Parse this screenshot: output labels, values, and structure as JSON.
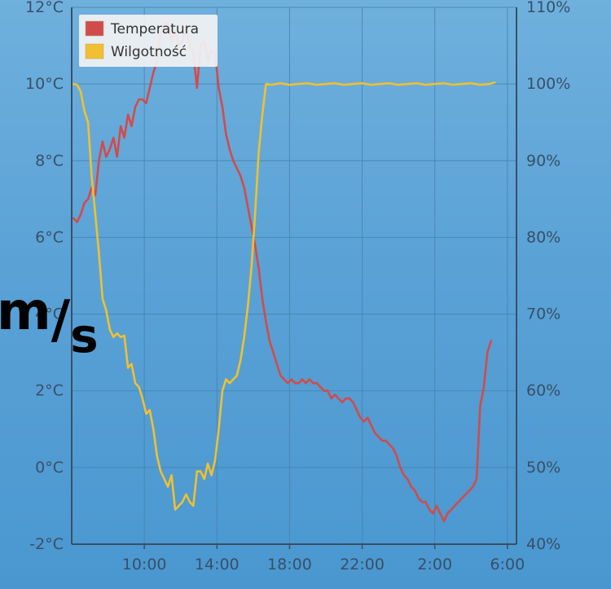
{
  "chart_data": {
    "type": "line",
    "title": "",
    "xlabel": "",
    "ylabel_left": "",
    "ylabel_right": "",
    "x_tick_labels": [
      "10:00",
      "14:00",
      "18:00",
      "22:00",
      "2:00",
      "6:00"
    ],
    "x_ticks_hours": [
      10,
      14,
      18,
      22,
      26,
      30
    ],
    "xlim_hours": [
      6.0,
      30.5
    ],
    "y_left_ticks": [
      "-2°C",
      "0°C",
      "2°C",
      "4°C",
      "6°C",
      "8°C",
      "10°C",
      "12°C"
    ],
    "ylim_left": [
      -2,
      12
    ],
    "y_right_ticks": [
      "40%",
      "50%",
      "60%",
      "70%",
      "80%",
      "90%",
      "100%",
      "110%"
    ],
    "ylim_right": [
      40,
      110
    ],
    "grid": true,
    "legend_position": "top-left",
    "series": [
      {
        "name": "Temperatura",
        "axis": "left",
        "color": "#d24b4b",
        "points": [
          [
            6.1,
            6.5
          ],
          [
            6.3,
            6.4
          ],
          [
            6.5,
            6.6
          ],
          [
            6.7,
            6.9
          ],
          [
            6.9,
            7.0
          ],
          [
            7.1,
            7.3
          ],
          [
            7.3,
            7.1
          ],
          [
            7.5,
            8.0
          ],
          [
            7.7,
            8.5
          ],
          [
            7.9,
            8.1
          ],
          [
            8.1,
            8.3
          ],
          [
            8.3,
            8.6
          ],
          [
            8.5,
            8.1
          ],
          [
            8.7,
            8.9
          ],
          [
            8.9,
            8.6
          ],
          [
            9.1,
            9.2
          ],
          [
            9.3,
            8.9
          ],
          [
            9.5,
            9.4
          ],
          [
            9.7,
            9.6
          ],
          [
            9.9,
            9.6
          ],
          [
            10.1,
            9.5
          ],
          [
            10.3,
            9.9
          ],
          [
            10.5,
            10.3
          ],
          [
            10.7,
            10.6
          ],
          [
            10.9,
            11.3
          ],
          [
            11.1,
            11.6
          ],
          [
            11.3,
            11.6
          ],
          [
            11.5,
            11.1
          ],
          [
            11.7,
            11.4
          ],
          [
            11.9,
            11.0
          ],
          [
            12.1,
            11.1
          ],
          [
            12.3,
            11.5
          ],
          [
            12.5,
            11.0
          ],
          [
            12.7,
            10.8
          ],
          [
            12.9,
            9.9
          ],
          [
            13.1,
            11.0
          ],
          [
            13.3,
            11.1
          ],
          [
            13.5,
            10.6
          ],
          [
            13.7,
            10.9
          ],
          [
            13.9,
            10.8
          ],
          [
            14.1,
            9.9
          ],
          [
            14.3,
            9.4
          ],
          [
            14.5,
            8.7
          ],
          [
            14.7,
            8.3
          ],
          [
            14.9,
            8.0
          ],
          [
            15.1,
            7.8
          ],
          [
            15.3,
            7.6
          ],
          [
            15.5,
            7.3
          ],
          [
            15.7,
            6.8
          ],
          [
            15.9,
            6.3
          ],
          [
            16.1,
            5.8
          ],
          [
            16.3,
            5.2
          ],
          [
            16.5,
            4.4
          ],
          [
            16.7,
            3.8
          ],
          [
            16.9,
            3.3
          ],
          [
            17.1,
            3.0
          ],
          [
            17.3,
            2.7
          ],
          [
            17.5,
            2.4
          ],
          [
            17.7,
            2.3
          ],
          [
            17.9,
            2.2
          ],
          [
            18.1,
            2.3
          ],
          [
            18.3,
            2.2
          ],
          [
            18.5,
            2.2
          ],
          [
            18.7,
            2.3
          ],
          [
            18.9,
            2.2
          ],
          [
            19.1,
            2.3
          ],
          [
            19.3,
            2.2
          ],
          [
            19.5,
            2.2
          ],
          [
            19.7,
            2.1
          ],
          [
            19.9,
            2.0
          ],
          [
            20.1,
            2.0
          ],
          [
            20.3,
            1.8
          ],
          [
            20.5,
            1.9
          ],
          [
            20.7,
            1.8
          ],
          [
            20.9,
            1.7
          ],
          [
            21.1,
            1.8
          ],
          [
            21.3,
            1.8
          ],
          [
            21.5,
            1.7
          ],
          [
            21.7,
            1.5
          ],
          [
            21.9,
            1.3
          ],
          [
            22.1,
            1.2
          ],
          [
            22.3,
            1.3
          ],
          [
            22.5,
            1.1
          ],
          [
            22.7,
            0.9
          ],
          [
            22.9,
            0.8
          ],
          [
            23.1,
            0.7
          ],
          [
            23.3,
            0.7
          ],
          [
            23.5,
            0.6
          ],
          [
            23.7,
            0.5
          ],
          [
            23.9,
            0.3
          ],
          [
            24.1,
            0.0
          ],
          [
            24.3,
            -0.2
          ],
          [
            24.5,
            -0.3
          ],
          [
            24.7,
            -0.5
          ],
          [
            24.9,
            -0.6
          ],
          [
            25.1,
            -0.8
          ],
          [
            25.3,
            -0.9
          ],
          [
            25.5,
            -0.9
          ],
          [
            25.7,
            -1.1
          ],
          [
            25.9,
            -1.2
          ],
          [
            26.1,
            -1.0
          ],
          [
            26.3,
            -1.2
          ],
          [
            26.5,
            -1.4
          ],
          [
            26.7,
            -1.2
          ],
          [
            26.9,
            -1.1
          ],
          [
            27.1,
            -1.0
          ],
          [
            27.3,
            -0.9
          ],
          [
            27.5,
            -0.8
          ],
          [
            27.7,
            -0.7
          ],
          [
            27.9,
            -0.6
          ],
          [
            28.1,
            -0.5
          ],
          [
            28.3,
            -0.3
          ],
          [
            28.5,
            1.6
          ],
          [
            28.7,
            2.1
          ],
          [
            28.9,
            3.0
          ],
          [
            29.1,
            3.3
          ]
        ]
      },
      {
        "name": "Wilgotność",
        "axis": "right",
        "color": "#f0c030",
        "points": [
          [
            6.1,
            100.0
          ],
          [
            6.3,
            99.9
          ],
          [
            6.5,
            99.0
          ],
          [
            6.7,
            96.5
          ],
          [
            6.9,
            95.0
          ],
          [
            7.1,
            88.0
          ],
          [
            7.3,
            83.0
          ],
          [
            7.5,
            78.0
          ],
          [
            7.7,
            72.0
          ],
          [
            7.9,
            70.5
          ],
          [
            8.1,
            68.0
          ],
          [
            8.3,
            67.0
          ],
          [
            8.5,
            67.5
          ],
          [
            8.7,
            67.0
          ],
          [
            8.9,
            67.2
          ],
          [
            9.1,
            63.0
          ],
          [
            9.3,
            63.5
          ],
          [
            9.5,
            61.0
          ],
          [
            9.7,
            60.5
          ],
          [
            9.9,
            59.0
          ],
          [
            10.1,
            57.0
          ],
          [
            10.3,
            57.5
          ],
          [
            10.5,
            55.0
          ],
          [
            10.7,
            51.5
          ],
          [
            10.9,
            49.5
          ],
          [
            11.1,
            48.5
          ],
          [
            11.3,
            47.5
          ],
          [
            11.5,
            49.0
          ],
          [
            11.7,
            44.5
          ],
          [
            11.9,
            45.0
          ],
          [
            12.1,
            45.5
          ],
          [
            12.3,
            46.5
          ],
          [
            12.5,
            45.5
          ],
          [
            12.7,
            45.0
          ],
          [
            12.9,
            49.5
          ],
          [
            13.1,
            49.5
          ],
          [
            13.3,
            48.5
          ],
          [
            13.5,
            50.5
          ],
          [
            13.7,
            49.0
          ],
          [
            13.9,
            51.0
          ],
          [
            14.1,
            55.0
          ],
          [
            14.3,
            60.0
          ],
          [
            14.5,
            61.5
          ],
          [
            14.7,
            61.0
          ],
          [
            14.9,
            61.5
          ],
          [
            15.1,
            62.0
          ],
          [
            15.3,
            64.0
          ],
          [
            15.5,
            67.0
          ],
          [
            15.7,
            71.0
          ],
          [
            15.9,
            76.0
          ],
          [
            16.1,
            83.0
          ],
          [
            16.3,
            91.0
          ],
          [
            16.5,
            96.0
          ],
          [
            16.7,
            100.0
          ],
          [
            17.0,
            99.9
          ],
          [
            17.5,
            100.1
          ],
          [
            18.0,
            99.9
          ],
          [
            18.5,
            100.0
          ],
          [
            19.0,
            100.1
          ],
          [
            19.5,
            99.9
          ],
          [
            20.0,
            100.0
          ],
          [
            20.5,
            100.1
          ],
          [
            21.0,
            99.9
          ],
          [
            21.5,
            100.0
          ],
          [
            22.0,
            100.1
          ],
          [
            22.5,
            99.9
          ],
          [
            23.0,
            100.0
          ],
          [
            23.5,
            100.1
          ],
          [
            24.0,
            99.9
          ],
          [
            24.5,
            100.0
          ],
          [
            25.0,
            100.1
          ],
          [
            25.5,
            99.9
          ],
          [
            26.0,
            100.0
          ],
          [
            26.5,
            100.1
          ],
          [
            27.0,
            99.9
          ],
          [
            27.5,
            100.0
          ],
          [
            28.0,
            100.1
          ],
          [
            28.5,
            99.9
          ],
          [
            29.0,
            100.0
          ],
          [
            29.3,
            100.2
          ]
        ]
      }
    ]
  },
  "overlay": {
    "numerator": "m",
    "slash": "/",
    "denominator": "s"
  },
  "colors": {
    "axis": "#3a4f66",
    "grid": "#4a82ad",
    "legend_bg": "#f2f2f2"
  }
}
